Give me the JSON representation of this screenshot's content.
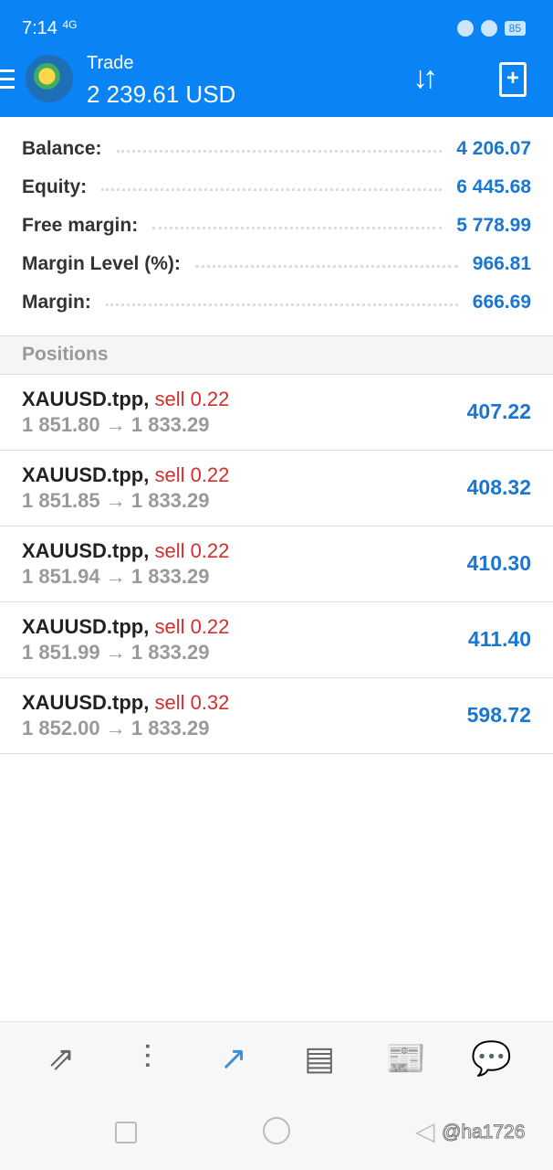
{
  "status_bar": {
    "time": "7:14",
    "signal": "4G",
    "battery": "85"
  },
  "header": {
    "title": "Trade",
    "balance": "2 239.61 USD"
  },
  "summary": [
    {
      "label": "Balance:",
      "value": "4 206.07"
    },
    {
      "label": "Equity:",
      "value": "6 445.68"
    },
    {
      "label": "Free margin:",
      "value": "5 778.99"
    },
    {
      "label": "Margin Level (%):",
      "value": "966.81"
    },
    {
      "label": "Margin:",
      "value": "666.69"
    }
  ],
  "positions_header": "Positions",
  "positions": [
    {
      "symbol": "XAUUSD.tpp,",
      "side": "sell 0.22",
      "prices": "1 851.80 → 1 833.29",
      "profit": "407.22"
    },
    {
      "symbol": "XAUUSD.tpp,",
      "side": "sell 0.22",
      "prices": "1 851.85 → 1 833.29",
      "profit": "408.32"
    },
    {
      "symbol": "XAUUSD.tpp,",
      "side": "sell 0.22",
      "prices": "1 851.94 → 1 833.29",
      "profit": "410.30"
    },
    {
      "symbol": "XAUUSD.tpp,",
      "side": "sell 0.22",
      "prices": "1 851.99 → 1 833.29",
      "profit": "411.40"
    },
    {
      "symbol": "XAUUSD.tpp,",
      "side": "sell 0.32",
      "prices": "1 852.00 → 1 833.29",
      "profit": "598.72"
    }
  ],
  "bottom_nav": [
    "quotes-icon",
    "chart-icon",
    "trade-icon",
    "history-icon",
    "news-icon",
    "chat-icon"
  ],
  "watermark": "@ha1726",
  "colors": {
    "header": "#0a84f5",
    "value": "#1976d2",
    "sell": "#d32f2f",
    "active_tab": "#3a8fd8"
  }
}
